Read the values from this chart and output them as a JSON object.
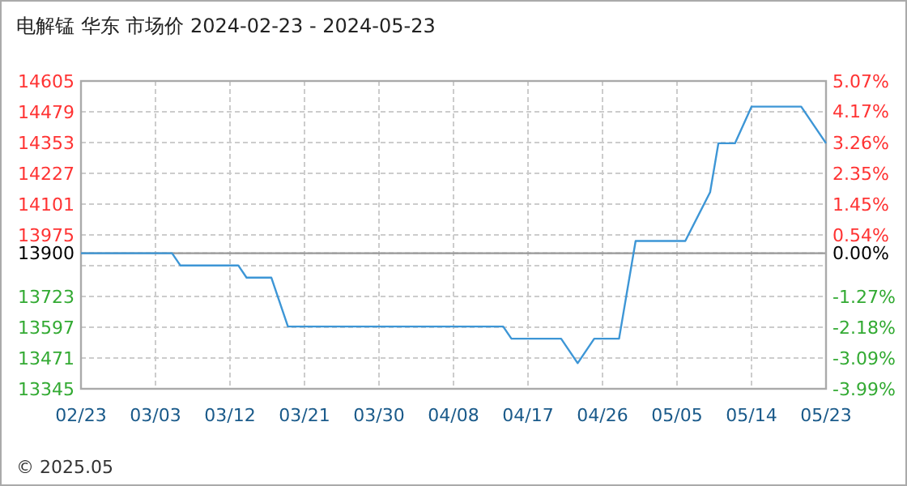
{
  "chart_data": {
    "type": "line",
    "title": "电解锰 华东 市场价 2024-02-23 - 2024-05-23",
    "x": [
      "2024-02-23",
      "2024-03-05",
      "2024-03-06",
      "2024-03-13",
      "2024-03-14",
      "2024-03-17",
      "2024-03-19",
      "2024-04-14",
      "2024-04-15",
      "2024-04-21",
      "2024-04-23",
      "2024-04-25",
      "2024-04-28",
      "2024-04-30",
      "2024-05-06",
      "2024-05-09",
      "2024-05-10",
      "2024-05-12",
      "2024-05-14",
      "2024-05-20",
      "2024-05-23"
    ],
    "series": [
      {
        "color": "#3d96d6",
        "values": [
          13900,
          13900,
          13850,
          13850,
          13800,
          13800,
          13600,
          13600,
          13550,
          13550,
          13450,
          13550,
          13550,
          13950,
          13950,
          14150,
          14350,
          14350,
          14500,
          14500,
          14350
        ]
      }
    ],
    "xlim": [
      "2024-02-23",
      "2024-05-23"
    ],
    "xticks": [
      {
        "value": "2024-02-23",
        "label": "02/23"
      },
      {
        "value": "2024-03-03",
        "label": "03/03"
      },
      {
        "value": "2024-03-12",
        "label": "03/12"
      },
      {
        "value": "2024-03-21",
        "label": "03/21"
      },
      {
        "value": "2024-03-30",
        "label": "03/30"
      },
      {
        "value": "2024-04-08",
        "label": "04/08"
      },
      {
        "value": "2024-04-17",
        "label": "04/17"
      },
      {
        "value": "2024-04-26",
        "label": "04/26"
      },
      {
        "value": "2024-05-05",
        "label": "05/05"
      },
      {
        "value": "2024-05-14",
        "label": "05/14"
      },
      {
        "value": "2024-05-23",
        "label": "05/23"
      }
    ],
    "ylim": [
      13345,
      14605
    ],
    "yticks": [
      13345,
      13471,
      13597,
      13723,
      {
        "value": 13849,
        "label": null
      },
      13900,
      13975,
      14101,
      14227,
      14353,
      14479,
      14605
    ],
    "y2lim": [
      -3.99,
      5.07
    ],
    "y2ticks": [
      {
        "value": -3.99,
        "label": "-3.99%"
      },
      {
        "value": -3.09,
        "label": "-3.09%"
      },
      {
        "value": -2.18,
        "label": "-2.18%"
      },
      {
        "value": -1.27,
        "label": "-1.27%"
      },
      {
        "value": 0,
        "label": "0.00%"
      },
      {
        "value": 0.54,
        "label": "0.54%"
      },
      {
        "value": 1.45,
        "label": "1.45%"
      },
      {
        "value": 2.35,
        "label": "2.35%"
      },
      {
        "value": 3.26,
        "label": "3.26%"
      },
      {
        "value": 4.17,
        "label": "4.17%"
      },
      {
        "value": 5.07,
        "label": "5.07%"
      }
    ],
    "ref_lines": [
      {
        "axis": "y",
        "value": 13900,
        "label": null,
        "color": "#999999"
      }
    ],
    "grid": true,
    "line_style": "solid",
    "marker": "none",
    "annotations": [
      "© 2025.05"
    ]
  }
}
